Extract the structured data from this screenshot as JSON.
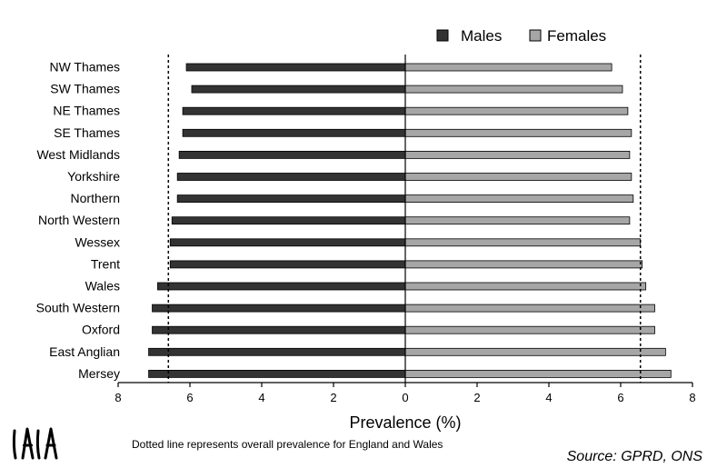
{
  "chart_data": {
    "type": "bar",
    "orientation": "horizontal-butterfly",
    "categories": [
      "NW Thames",
      "SW Thames",
      "NE Thames",
      "SE Thames",
      "West Midlands",
      "Yorkshire",
      "Northern",
      "North Western",
      "Wessex",
      "Trent",
      "Wales",
      "South Western",
      "Oxford",
      "East Anglian",
      "Mersey"
    ],
    "series": [
      {
        "name": "Males",
        "color": "#333333",
        "values": [
          6.1,
          5.95,
          6.2,
          6.2,
          6.3,
          6.35,
          6.35,
          6.5,
          6.55,
          6.55,
          6.9,
          7.05,
          7.05,
          7.15,
          7.15
        ]
      },
      {
        "name": "Females",
        "color": "#a6a6a6",
        "values": [
          5.75,
          6.05,
          6.2,
          6.3,
          6.25,
          6.3,
          6.35,
          6.25,
          6.55,
          6.6,
          6.7,
          6.95,
          6.95,
          7.25,
          7.4
        ]
      }
    ],
    "xlabel": "Prevalence (%)",
    "ylabel": "",
    "xlim": [
      -8,
      8
    ],
    "xticks": [
      -8,
      -6,
      -4,
      -2,
      0,
      2,
      4,
      6,
      8
    ],
    "xtick_labels": [
      "8",
      "6",
      "4",
      "2",
      "0",
      "2",
      "4",
      "6",
      "8"
    ],
    "reference_line": {
      "style": "dotted",
      "males_value": 6.6,
      "females_value": 6.55
    },
    "legend": "top-right",
    "grid": false
  },
  "footer": {
    "note": "Dotted line represents overall prevalence for England and Wales",
    "source": "Source:  GPRD, ONS",
    "logo_text": "IAIA"
  }
}
